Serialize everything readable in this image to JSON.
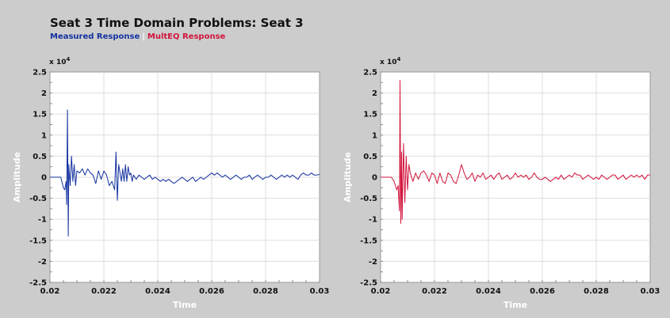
{
  "page": {
    "title": "Seat 3 Time Domain Problems: Seat 3",
    "legend": [
      {
        "label": "Measured Response",
        "color": "#1432a0"
      },
      {
        "label": "MultEQ Response",
        "color": "#d2143c"
      }
    ],
    "legend_separator": "|"
  },
  "chart_data": [
    {
      "type": "line",
      "name": "Measured Response",
      "xlabel": "Time",
      "ylabel": "Amplitude",
      "multiplier": "x 10^4",
      "xlim": [
        0.02,
        0.03
      ],
      "ylim": [
        -2.5,
        2.5
      ],
      "x_ticks": [
        "0.02",
        "0.022",
        "0.024",
        "0.026",
        "0.028",
        "0.03"
      ],
      "y_ticks": [
        "2.5",
        "2",
        "1.5",
        "1",
        "0.5",
        "0",
        "-0.5",
        "-1",
        "-1.5",
        "-2",
        "-2.5"
      ],
      "grid": true,
      "series": [
        {
          "color": "#1432a0",
          "x": [
            0.02,
            0.0204,
            0.0205,
            0.02055,
            0.0206,
            0.02062,
            0.02065,
            0.02068,
            0.0207,
            0.02075,
            0.0208,
            0.02085,
            0.0209,
            0.02095,
            0.021,
            0.0211,
            0.0212,
            0.0213,
            0.0214,
            0.0215,
            0.0216,
            0.0217,
            0.0218,
            0.0219,
            0.022,
            0.0221,
            0.0222,
            0.0223,
            0.0224,
            0.02245,
            0.0225,
            0.02255,
            0.0226,
            0.02265,
            0.0227,
            0.02275,
            0.0228,
            0.02285,
            0.0229,
            0.02295,
            0.023,
            0.02305,
            0.0231,
            0.0232,
            0.0233,
            0.0234,
            0.0235,
            0.0236,
            0.0237,
            0.0238,
            0.0239,
            0.024,
            0.0241,
            0.0242,
            0.0243,
            0.0244,
            0.0245,
            0.0246,
            0.0247,
            0.0248,
            0.0249,
            0.025,
            0.0251,
            0.0252,
            0.0253,
            0.0254,
            0.0255,
            0.0256,
            0.0257,
            0.0258,
            0.0259,
            0.026,
            0.0261,
            0.0262,
            0.0263,
            0.0264,
            0.0265,
            0.0266,
            0.0267,
            0.0268,
            0.0269,
            0.027,
            0.0271,
            0.0272,
            0.0273,
            0.0274,
            0.0275,
            0.0276,
            0.0277,
            0.0278,
            0.0279,
            0.028,
            0.0281,
            0.0282,
            0.0283,
            0.0284,
            0.0285,
            0.0286,
            0.0287,
            0.0288,
            0.0289,
            0.029,
            0.0291,
            0.0292,
            0.0293,
            0.0294,
            0.0295,
            0.0296,
            0.0297,
            0.0298,
            0.0299,
            0.03
          ],
          "y": [
            0,
            0,
            -0.25,
            -0.3,
            -0.1,
            -0.65,
            1.6,
            -1.4,
            0.3,
            -0.2,
            0.5,
            -0.1,
            0.3,
            -0.2,
            0.15,
            0.1,
            0.2,
            0.05,
            0.2,
            0.1,
            0.05,
            -0.15,
            0.15,
            -0.05,
            0.15,
            0.05,
            -0.2,
            -0.1,
            -0.3,
            0.6,
            -0.55,
            0.3,
            0.1,
            -0.1,
            0.2,
            -0.1,
            0.3,
            -0.1,
            0.25,
            0.05,
            0.1,
            -0.1,
            0.05,
            -0.05,
            0.05,
            0.0,
            -0.05,
            0.0,
            0.05,
            -0.05,
            0.0,
            -0.05,
            -0.1,
            -0.05,
            -0.1,
            -0.05,
            -0.1,
            -0.15,
            -0.1,
            -0.05,
            0.0,
            -0.05,
            -0.1,
            -0.05,
            0.0,
            -0.1,
            -0.05,
            0.0,
            -0.05,
            0.0,
            0.05,
            0.1,
            0.05,
            0.1,
            0.05,
            0.0,
            0.05,
            0.0,
            -0.05,
            0.0,
            0.05,
            0.0,
            -0.05,
            0.0,
            0.0,
            0.05,
            -0.05,
            0.0,
            0.05,
            0.0,
            -0.05,
            0.0,
            0.0,
            0.05,
            0.0,
            -0.05,
            0.0,
            0.05,
            0.0,
            0.05,
            0.0,
            0.05,
            0.0,
            -0.05,
            0.05,
            0.1,
            0.05,
            0.05,
            0.1,
            0.05,
            0.05,
            0.07
          ]
        }
      ]
    },
    {
      "type": "line",
      "name": "MultEQ Response",
      "xlabel": "Time",
      "ylabel": "Amplitude",
      "multiplier": "x 10^4",
      "xlim": [
        0.02,
        0.03
      ],
      "ylim": [
        -2.5,
        2.5
      ],
      "x_ticks": [
        "0.02",
        "0.022",
        "0.024",
        "0.026",
        "0.028",
        "0.03"
      ],
      "y_ticks": [
        "2.5",
        "2",
        "1.5",
        "1",
        "0.5",
        "0",
        "-0.5",
        "-1",
        "-1.5",
        "-2",
        "-2.5"
      ],
      "grid": true,
      "series": [
        {
          "color": "#d2143c",
          "x": [
            0.02,
            0.0204,
            0.0205,
            0.0206,
            0.02065,
            0.0207,
            0.02072,
            0.02075,
            0.02078,
            0.0208,
            0.02085,
            0.0209,
            0.02095,
            0.021,
            0.02105,
            0.0211,
            0.0212,
            0.0213,
            0.0214,
            0.0215,
            0.0216,
            0.0217,
            0.0218,
            0.0219,
            0.022,
            0.0221,
            0.0222,
            0.0223,
            0.0224,
            0.0225,
            0.0226,
            0.0227,
            0.0228,
            0.0229,
            0.023,
            0.0231,
            0.0232,
            0.0233,
            0.0234,
            0.0235,
            0.0236,
            0.0237,
            0.0238,
            0.0239,
            0.024,
            0.0241,
            0.0242,
            0.0243,
            0.0244,
            0.0245,
            0.0246,
            0.0247,
            0.0248,
            0.0249,
            0.025,
            0.0251,
            0.0252,
            0.0253,
            0.0254,
            0.0255,
            0.0256,
            0.0257,
            0.0258,
            0.0259,
            0.026,
            0.0261,
            0.0262,
            0.0263,
            0.0264,
            0.0265,
            0.0266,
            0.0267,
            0.0268,
            0.0269,
            0.027,
            0.0271,
            0.0272,
            0.0273,
            0.0274,
            0.0275,
            0.0276,
            0.0277,
            0.0278,
            0.0279,
            0.028,
            0.0281,
            0.0282,
            0.0283,
            0.0284,
            0.0285,
            0.0286,
            0.0287,
            0.0288,
            0.0289,
            0.029,
            0.0291,
            0.0292,
            0.0293,
            0.0294,
            0.0295,
            0.0296,
            0.0297,
            0.0298,
            0.0299,
            0.03
          ],
          "y": [
            0,
            0,
            -0.1,
            -0.3,
            -0.2,
            -0.8,
            2.3,
            -1.1,
            0.6,
            -1.0,
            0.8,
            -0.6,
            0.5,
            -0.3,
            0.3,
            0.1,
            -0.1,
            0.1,
            -0.05,
            0.1,
            0.15,
            0.05,
            -0.1,
            0.1,
            0.05,
            -0.15,
            0.1,
            -0.1,
            -0.15,
            0.1,
            0.05,
            -0.1,
            -0.15,
            0.05,
            0.3,
            0.1,
            -0.05,
            0.0,
            0.1,
            -0.1,
            0.05,
            0.0,
            0.1,
            -0.05,
            0.0,
            0.05,
            -0.05,
            0.05,
            0.1,
            -0.05,
            0.0,
            0.05,
            -0.05,
            0.0,
            0.1,
            0.0,
            0.05,
            0.0,
            0.05,
            -0.05,
            0.0,
            0.1,
            0.0,
            -0.05,
            -0.05,
            0.0,
            -0.05,
            -0.1,
            -0.05,
            0.0,
            -0.05,
            0.05,
            -0.05,
            0.0,
            0.05,
            0.0,
            0.1,
            0.05,
            0.05,
            -0.05,
            0.0,
            0.05,
            0.0,
            -0.05,
            0.0,
            -0.05,
            0.05,
            0.0,
            -0.05,
            0.0,
            0.05,
            0.05,
            -0.05,
            0.0,
            0.05,
            -0.05,
            0.0,
            0.05,
            0.0,
            0.05,
            0.0,
            0.05,
            -0.05,
            0.05,
            0.05
          ]
        }
      ]
    }
  ]
}
